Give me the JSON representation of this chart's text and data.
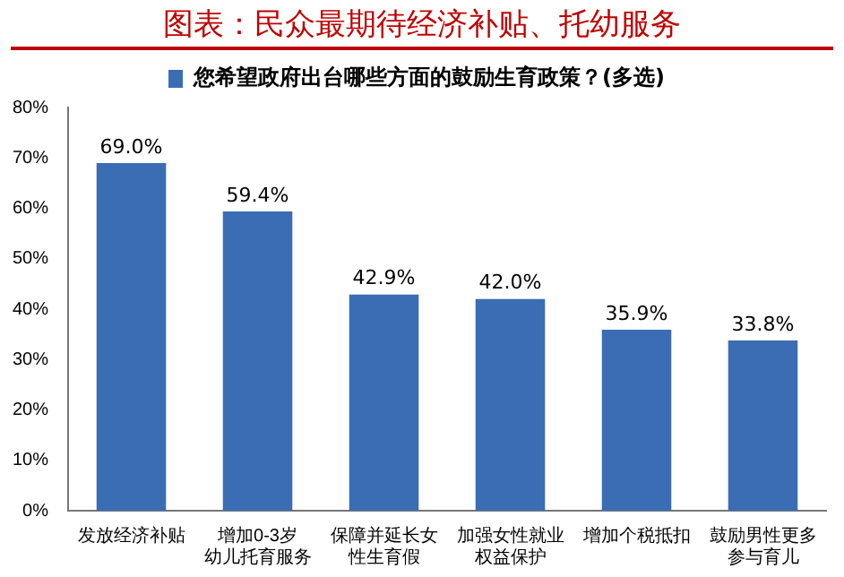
{
  "chart_data": {
    "type": "bar",
    "title": "图表：民众最期待经济补贴、托幼服务",
    "categories": [
      "发放经济补贴",
      "增加0-3岁幼儿托育服务",
      "保障并延长女性生育假",
      "加强女性就业权益保护",
      "增加个税抵扣",
      "鼓励男性更多参与育儿"
    ],
    "series": [
      {
        "name": "您希望政府出台哪些方面的鼓励生育政策？(多选)",
        "color": "#3a6db4",
        "values": [
          69.0,
          59.4,
          42.9,
          42.0,
          35.9,
          33.8
        ],
        "value_labels": [
          "69.0%",
          "59.4%",
          "42.9%",
          "42.0%",
          "35.9%",
          "33.8%"
        ]
      }
    ],
    "ylim": [
      0,
      80
    ],
    "yticks": [
      {
        "value": 0,
        "label": "0%"
      },
      {
        "value": 10,
        "label": "10%"
      },
      {
        "value": 20,
        "label": "20%"
      },
      {
        "value": 30,
        "label": "30%"
      },
      {
        "value": 40,
        "label": "40%"
      },
      {
        "value": 50,
        "label": "50%"
      },
      {
        "value": 60,
        "label": "60%"
      },
      {
        "value": 70,
        "label": "70%"
      },
      {
        "value": 80,
        "label": "80%"
      }
    ],
    "grid": false,
    "legend": "top"
  }
}
